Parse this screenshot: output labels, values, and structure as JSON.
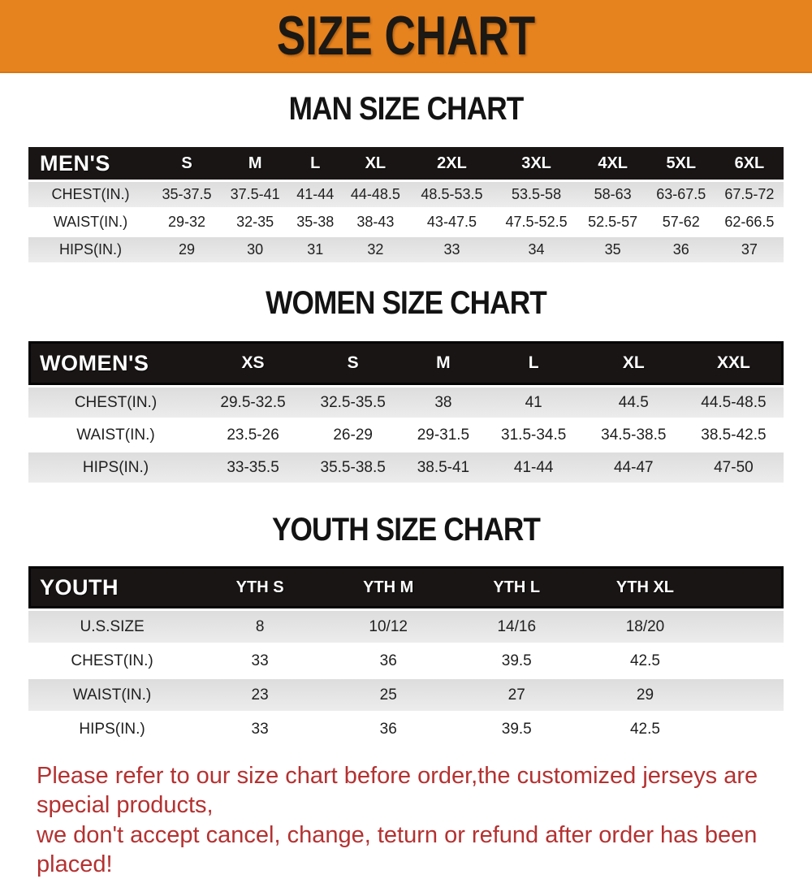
{
  "banner": {
    "title": "SIZE CHART",
    "background_color": "#e7831f",
    "text_color": "#1c1813"
  },
  "sections": [
    {
      "heading": "MAN SIZE CHART",
      "label": "MEN'S",
      "columns": [
        "S",
        "M",
        "L",
        "XL",
        "2XL",
        "3XL",
        "4XL",
        "5XL",
        "6XL"
      ],
      "rows": [
        {
          "label": "CHEST(IN.)",
          "values": [
            "35-37.5",
            "37.5-41",
            "41-44",
            "44-48.5",
            "48.5-53.5",
            "53.5-58",
            "58-63",
            "63-67.5",
            "67.5-72"
          ]
        },
        {
          "label": "WAIST(IN.)",
          "values": [
            "29-32",
            "32-35",
            "35-38",
            "38-43",
            "43-47.5",
            "47.5-52.5",
            "52.5-57",
            "57-62",
            "62-66.5"
          ]
        },
        {
          "label": "HIPS(IN.)",
          "values": [
            "29",
            "30",
            "31",
            "32",
            "33",
            "34",
            "35",
            "36",
            "37"
          ]
        }
      ]
    },
    {
      "heading": "WOMEN SIZE CHART",
      "label": "WOMEN'S",
      "columns": [
        "XS",
        "S",
        "M",
        "L",
        "XL",
        "XXL"
      ],
      "rows": [
        {
          "label": "CHEST(IN.)",
          "values": [
            "29.5-32.5",
            "32.5-35.5",
            "38",
            "41",
            "44.5",
            "44.5-48.5"
          ]
        },
        {
          "label": "WAIST(IN.)",
          "values": [
            "23.5-26",
            "26-29",
            "29-31.5",
            "31.5-34.5",
            "34.5-38.5",
            "38.5-42.5"
          ]
        },
        {
          "label": "HIPS(IN.)",
          "values": [
            "33-35.5",
            "35.5-38.5",
            "38.5-41",
            "41-44",
            "44-47",
            "47-50"
          ]
        }
      ]
    },
    {
      "heading": "YOUTH SIZE CHART",
      "label": "YOUTH",
      "columns": [
        "YTH S",
        "YTH M",
        "YTH L",
        "YTH XL"
      ],
      "rows": [
        {
          "label": "U.S.SIZE",
          "values": [
            "8",
            "10/12",
            "14/16",
            "18/20"
          ]
        },
        {
          "label": "CHEST(IN.)",
          "values": [
            "33",
            "36",
            "39.5",
            "42.5"
          ]
        },
        {
          "label": "WAIST(IN.)",
          "values": [
            "23",
            "25",
            "27",
            "29"
          ]
        },
        {
          "label": "HIPS(IN.)",
          "values": [
            "33",
            "36",
            "39.5",
            "42.5"
          ]
        }
      ]
    }
  ],
  "table_colors": {
    "header_bar": "#191515",
    "stripe_gray": "#e4e4e4",
    "stripe_white": "#ffffff"
  },
  "disclaimer": {
    "line1": "Please refer to our size chart before order,the customized jerseys are special products,",
    "line2": "we don't accept cancel, change, teturn or refund after order has been placed!",
    "text_color": "#b53131"
  }
}
